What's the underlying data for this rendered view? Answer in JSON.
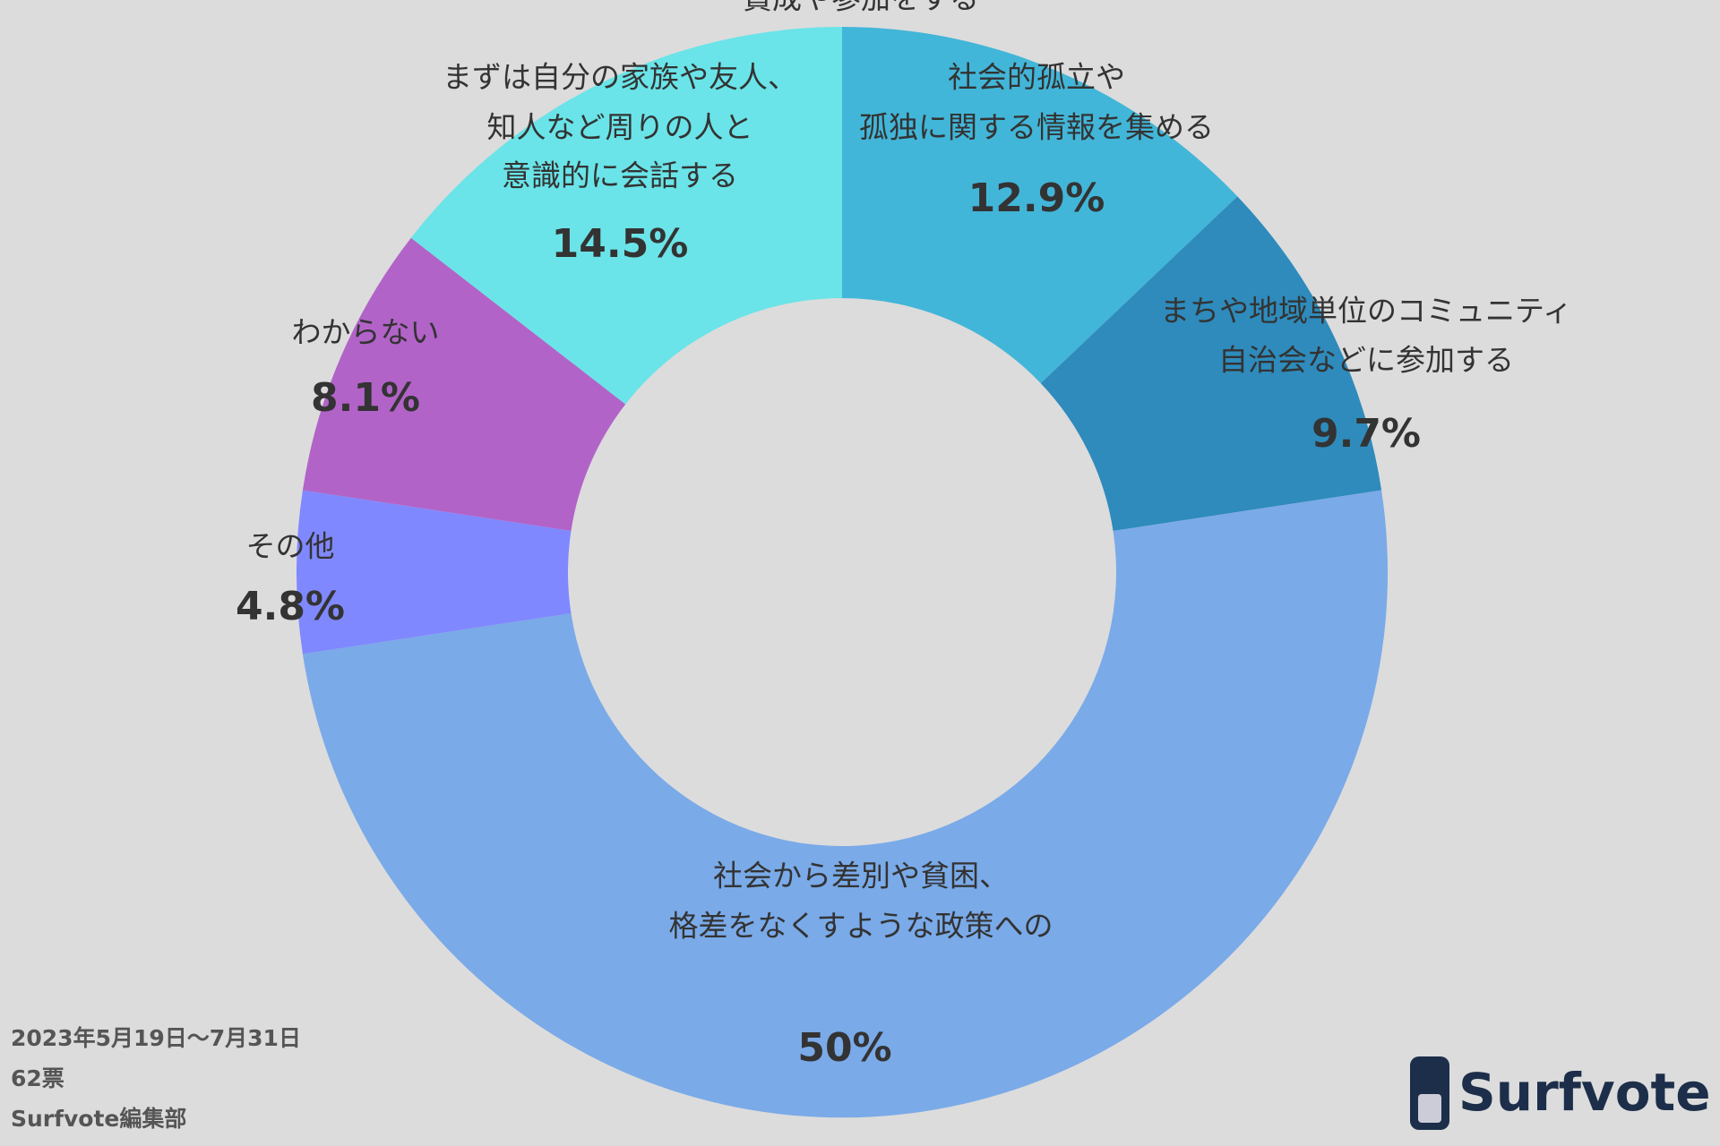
{
  "chart_data": {
    "type": "donut",
    "categories": [
      [
        "社会的孤立や",
        "孤独に関する情報を集める"
      ],
      [
        "まちや地域単位のコミュニティ",
        "自治会などに参加する"
      ],
      [
        "社会から差別や貧困、",
        "格差をなくすような政策への",
        "賛成や参加をする"
      ],
      [
        "その他"
      ],
      [
        "わからない"
      ],
      [
        "まずは自分の家族や友人、",
        "知人など周りの人と",
        "意識的に会話する"
      ]
    ],
    "values": [
      12.9,
      9.7,
      50,
      4.8,
      8.1,
      14.5
    ],
    "value_labels": [
      "12.9%",
      "9.7%",
      "50%",
      "4.8%",
      "8.1%",
      "14.5%"
    ],
    "colors": [
      "#42b6d8",
      "#2e8bbc",
      "#7aaae8",
      "#8088ff",
      "#b263c8",
      "#6ae4e8"
    ]
  },
  "footer": [
    "2023年5月19日〜7月31日",
    "62票",
    "Surfvote編集部"
  ],
  "logo": "Surfvote"
}
